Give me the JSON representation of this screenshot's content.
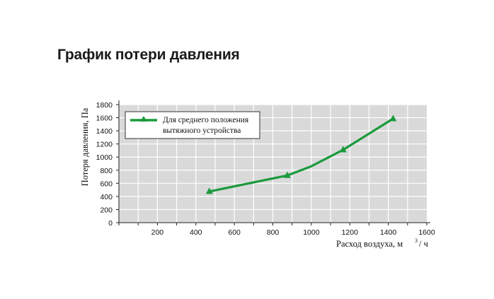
{
  "page": {
    "title": "График потери давления"
  },
  "chart_data": {
    "type": "line",
    "title": "График потери давления",
    "xlabel": "Расход воздуха, м³/ ч",
    "xlabel_main": "Расход воздуха, м",
    "xlabel_sup": "3",
    "xlabel_tail": "/ ч",
    "ylabel": "Потеря давления, Па",
    "xlim": [
      0,
      1600
    ],
    "ylim": [
      0,
      1800
    ],
    "x_ticks": [
      200,
      400,
      600,
      800,
      1000,
      1200,
      1400,
      1600
    ],
    "x_tick_labels": [
      "200",
      "400",
      "600",
      "800",
      "1000",
      "1200",
      "1400",
      "1600"
    ],
    "y_ticks": [
      0,
      200,
      400,
      600,
      800,
      1000,
      1200,
      1400,
      1600,
      1800
    ],
    "y_tick_labels": [
      "0",
      "200",
      "400",
      "600",
      "800",
      "1000",
      "1200",
      "1400",
      "1600",
      "1800"
    ],
    "grid": true,
    "grid_step_x": 100,
    "grid_step_y": 200,
    "legend_position": "upper left",
    "series": [
      {
        "name": "Для среднего положения вытяжного устройства",
        "legend_line1": "Для среднего положения",
        "legend_line2": "вытяжного устройства",
        "color": "#1a9a3c",
        "marker": "triangle",
        "x": [
          470,
          875,
          1000,
          1165,
          1425
        ],
        "y": [
          475,
          720,
          860,
          1110,
          1585
        ],
        "markers_at": [
          0,
          1,
          3,
          4
        ]
      }
    ]
  },
  "colors": {
    "plot_bg": "#d9d9d9",
    "grid": "#ffffff",
    "axis": "#222222",
    "series": "#1a9a3c"
  }
}
